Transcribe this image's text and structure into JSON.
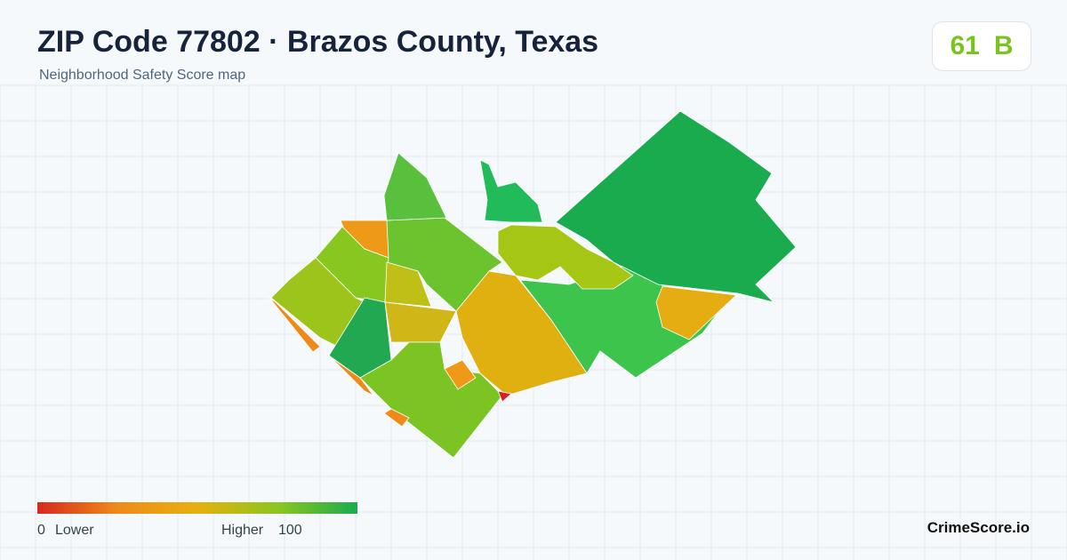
{
  "header": {
    "title": "ZIP Code 77802 · Brazos County, Texas",
    "subtitle": "Neighborhood Safety Score map"
  },
  "score": {
    "value": 61,
    "grade": "B"
  },
  "legend": {
    "min": 0,
    "low_label": "Lower",
    "high_label": "Higher",
    "max": 100
  },
  "brand": "CrimeScore.io"
}
